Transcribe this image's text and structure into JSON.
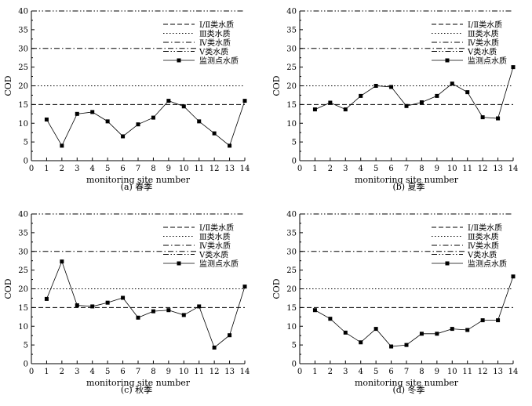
{
  "figure": {
    "captions": [
      "(a) 春季",
      "(b) 夏季",
      "(c) 秋季",
      "(d) 冬季"
    ]
  },
  "colors": {
    "line": "#000000",
    "axis": "#000000",
    "background": "#ffffff"
  },
  "chart_data": [
    {
      "type": "line",
      "caption": "(a) 春季",
      "xlabel": "monitoring site number",
      "ylabel": "COD",
      "xlim": [
        0,
        14
      ],
      "ylim": [
        0,
        40
      ],
      "xticks": [
        0,
        1,
        2,
        3,
        4,
        5,
        6,
        7,
        8,
        9,
        10,
        11,
        12,
        13,
        14
      ],
      "yticks": [
        0,
        5,
        10,
        15,
        20,
        25,
        30,
        35,
        40
      ],
      "reference_lines": [
        {
          "name": "Ⅰ/Ⅱ类水质",
          "y": 15,
          "style": "dash"
        },
        {
          "name": "Ⅲ类水质",
          "y": 20,
          "style": "dot"
        },
        {
          "name": "Ⅳ类水质",
          "y": 30,
          "style": "dashdot"
        },
        {
          "name": "Ⅴ类水质",
          "y": 40,
          "style": "dashdotdot"
        }
      ],
      "series": [
        {
          "name": "监测点水质",
          "x": [
            1,
            2,
            3,
            4,
            5,
            6,
            7,
            8,
            9,
            10,
            11,
            12,
            13,
            14
          ],
          "values": [
            11,
            4,
            12.5,
            13,
            10.5,
            6.5,
            9.7,
            11.5,
            16,
            14.5,
            10.5,
            7.3,
            4,
            16
          ]
        }
      ],
      "legend": [
        "Ⅰ/Ⅱ类水质",
        "Ⅲ类水质",
        "Ⅳ类水质",
        "Ⅴ类水质",
        "监测点水质"
      ],
      "legend_position": "top-right"
    },
    {
      "type": "line",
      "caption": "(b) 夏季",
      "xlabel": "monitoring site number",
      "ylabel": "COD",
      "xlim": [
        0,
        14
      ],
      "ylim": [
        0,
        40
      ],
      "xticks": [
        0,
        1,
        2,
        3,
        4,
        5,
        6,
        7,
        8,
        9,
        10,
        11,
        12,
        13,
        14
      ],
      "yticks": [
        0,
        5,
        10,
        15,
        20,
        25,
        30,
        35,
        40
      ],
      "reference_lines": [
        {
          "name": "Ⅰ/Ⅱ类水质",
          "y": 15,
          "style": "dash"
        },
        {
          "name": "Ⅲ类水质",
          "y": 20,
          "style": "dot"
        },
        {
          "name": "Ⅳ类水质",
          "y": 30,
          "style": "dashdot"
        },
        {
          "name": "Ⅴ类水质",
          "y": 40,
          "style": "dashdotdot"
        }
      ],
      "series": [
        {
          "name": "监测点水质",
          "x": [
            1,
            2,
            3,
            4,
            5,
            6,
            7,
            8,
            9,
            10,
            11,
            12,
            13,
            14
          ],
          "values": [
            13.7,
            15.5,
            13.7,
            17.3,
            20,
            19.7,
            14.6,
            15.6,
            17.3,
            20.6,
            18.3,
            11.6,
            11.3,
            25
          ]
        }
      ],
      "legend": [
        "Ⅰ/Ⅱ类水质",
        "Ⅲ类水质",
        "Ⅳ类水质",
        "Ⅴ类水质",
        "监测点水质"
      ],
      "legend_position": "top-right"
    },
    {
      "type": "line",
      "caption": "(c) 秋季",
      "xlabel": "monitoring site number",
      "ylabel": "COD",
      "xlim": [
        0,
        14
      ],
      "ylim": [
        0,
        40
      ],
      "xticks": [
        0,
        1,
        2,
        3,
        4,
        5,
        6,
        7,
        8,
        9,
        10,
        11,
        12,
        13,
        14
      ],
      "yticks": [
        0,
        5,
        10,
        15,
        20,
        25,
        30,
        35,
        40
      ],
      "reference_lines": [
        {
          "name": "Ⅰ/Ⅱ类水质",
          "y": 15,
          "style": "dash"
        },
        {
          "name": "Ⅲ类水质",
          "y": 20,
          "style": "dot"
        },
        {
          "name": "Ⅳ类水质",
          "y": 30,
          "style": "dashdot"
        },
        {
          "name": "Ⅴ类水质",
          "y": 40,
          "style": "dashdotdot"
        }
      ],
      "series": [
        {
          "name": "监测点水质",
          "x": [
            1,
            2,
            3,
            4,
            5,
            6,
            7,
            8,
            9,
            10,
            11,
            12,
            13,
            14
          ],
          "values": [
            17.3,
            27.3,
            15.6,
            15.3,
            16.3,
            17.6,
            12.3,
            14,
            14.3,
            13,
            15.3,
            4.3,
            7.6,
            20.6
          ]
        }
      ],
      "legend": [
        "Ⅰ/Ⅱ类水质",
        "Ⅲ类水质",
        "Ⅳ类水质",
        "Ⅴ类水质",
        "监测点水质"
      ],
      "legend_position": "top-right"
    },
    {
      "type": "line",
      "caption": "(d) 冬季",
      "xlabel": "monitoring site number",
      "ylabel": "COD",
      "xlim": [
        0,
        14
      ],
      "ylim": [
        0,
        40
      ],
      "xticks": [
        0,
        1,
        2,
        3,
        4,
        5,
        6,
        7,
        8,
        9,
        10,
        11,
        12,
        13,
        14
      ],
      "yticks": [
        0,
        5,
        10,
        15,
        20,
        25,
        30,
        35,
        40
      ],
      "reference_lines": [
        {
          "name": "Ⅰ/Ⅱ类水质",
          "y": 15,
          "style": "dash"
        },
        {
          "name": "Ⅲ类水质",
          "y": 20,
          "style": "dot"
        },
        {
          "name": "Ⅳ类水质",
          "y": 30,
          "style": "dashdot"
        },
        {
          "name": "Ⅴ类水质",
          "y": 40,
          "style": "dashdotdot"
        }
      ],
      "series": [
        {
          "name": "监测点水质",
          "x": [
            1,
            2,
            3,
            4,
            5,
            6,
            7,
            8,
            9,
            10,
            11,
            12,
            13,
            14
          ],
          "values": [
            14.3,
            12,
            8.3,
            5.7,
            9.3,
            4.6,
            5,
            8,
            8,
            9.3,
            9,
            11.6,
            11.6,
            23.3
          ]
        }
      ],
      "legend": [
        "Ⅰ/Ⅱ类水质",
        "Ⅲ类水质",
        "Ⅳ类水质",
        "Ⅴ类水质",
        "监测点水质"
      ],
      "legend_position": "top-right"
    }
  ]
}
